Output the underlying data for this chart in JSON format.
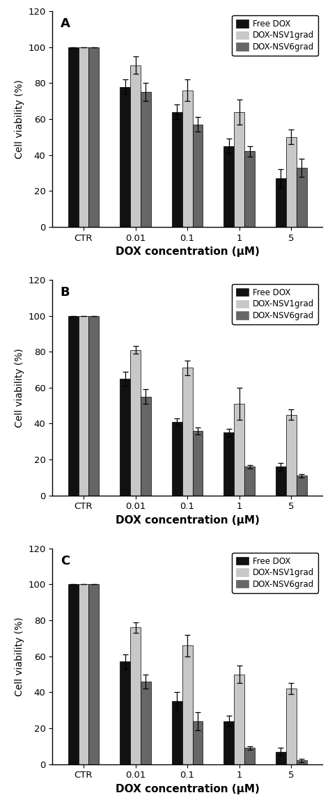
{
  "panels": [
    {
      "label": "A",
      "categories": [
        "CTR",
        "0.01",
        "0.1",
        "1",
        "5"
      ],
      "free_dox": [
        100,
        78,
        64,
        45,
        27
      ],
      "nsv1grad": [
        100,
        90,
        76,
        64,
        50
      ],
      "nsv6grad": [
        100,
        75,
        57,
        42,
        33
      ],
      "free_dox_err": [
        0,
        4,
        4,
        4,
        5
      ],
      "nsv1grad_err": [
        0,
        5,
        6,
        7,
        4
      ],
      "nsv6grad_err": [
        0,
        5,
        4,
        3,
        5
      ]
    },
    {
      "label": "B",
      "categories": [
        "CTR",
        "0.01",
        "0.1",
        "1",
        "5"
      ],
      "free_dox": [
        100,
        65,
        41,
        35,
        16
      ],
      "nsv1grad": [
        100,
        81,
        71,
        51,
        45
      ],
      "nsv6grad": [
        100,
        55,
        36,
        16,
        11
      ],
      "free_dox_err": [
        0,
        4,
        2,
        2,
        2
      ],
      "nsv1grad_err": [
        0,
        2,
        4,
        9,
        3
      ],
      "nsv6grad_err": [
        0,
        4,
        2,
        1,
        1
      ]
    },
    {
      "label": "C",
      "categories": [
        "CTR",
        "0.01",
        "0.1",
        "1",
        "5"
      ],
      "free_dox": [
        100,
        57,
        35,
        24,
        7
      ],
      "nsv1grad": [
        100,
        76,
        66,
        50,
        42
      ],
      "nsv6grad": [
        100,
        46,
        24,
        9,
        2
      ],
      "free_dox_err": [
        0,
        4,
        5,
        3,
        2
      ],
      "nsv1grad_err": [
        0,
        3,
        6,
        5,
        3
      ],
      "nsv6grad_err": [
        0,
        4,
        5,
        1,
        1
      ]
    }
  ],
  "bar_colors": {
    "free_dox": "#111111",
    "nsv1grad": "#c8c8c8",
    "nsv6grad": "#666666"
  },
  "ylabel": "Cell viability (%)",
  "xlabel": "DOX concentration (μM)",
  "ylim": [
    0,
    120
  ],
  "yticks": [
    0,
    20,
    40,
    60,
    80,
    100,
    120
  ],
  "legend_labels": [
    "Free DOX",
    "DOX-NSV1grad",
    "DOX-NSV6grad"
  ],
  "bar_width": 0.2,
  "capsize": 3,
  "figsize": [
    4.74,
    11.52
  ],
  "dpi": 100
}
